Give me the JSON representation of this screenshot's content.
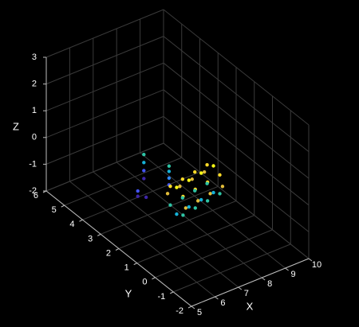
{
  "chart_data": {
    "type": "scatter3d",
    "xlabel": "X",
    "ylabel": "Y",
    "zlabel": "Z",
    "xlim": [
      5,
      10
    ],
    "ylim": [
      -2,
      6
    ],
    "zlim": [
      -2,
      3
    ],
    "xticks": [
      5,
      6,
      7,
      8,
      9,
      10
    ],
    "yticks": [
      -2,
      -1,
      0,
      1,
      2,
      3,
      4,
      5,
      6
    ],
    "zticks": [
      -2,
      -1,
      0,
      1,
      2,
      3
    ],
    "grid": true,
    "colormap": [
      "#3e26a8",
      "#4355f4",
      "#2e87f7",
      "#16b1d6",
      "#2ec4a5",
      "#8fcb5c",
      "#e1bc3a",
      "#fdda27",
      "#f9fb15"
    ],
    "x": [
      8,
      8,
      8,
      8,
      8.3,
      8.3,
      8.3,
      8.3,
      7.2,
      7.2,
      7.4,
      7,
      7,
      7,
      7,
      7,
      7,
      7,
      7,
      7.6,
      7.6,
      7.6,
      7.6,
      7.6,
      7.6,
      7.6,
      7.6,
      8.2,
      8.2,
      8.2,
      8.2,
      8.2,
      8.2,
      8.2,
      8.2,
      8.8,
      8.8,
      8.8,
      8.8,
      8.8,
      8.8,
      8.8,
      8.8
    ],
    "y": [
      4.5,
      4.5,
      4.5,
      4.5,
      3.5,
      3.5,
      3.5,
      3.5,
      3.8,
      3.8,
      3.6,
      1.9,
      1.75,
      1.4,
      1.05,
      0.9,
      1.05,
      1.4,
      1.75,
      2.0,
      1.85,
      1.5,
      1.15,
      1.0,
      1.15,
      1.5,
      1.85,
      2.1,
      1.95,
      1.6,
      1.25,
      1.1,
      1.25,
      1.6,
      1.95,
      2.2,
      2.05,
      1.7,
      1.35,
      1.2,
      1.35,
      1.7,
      2.05
    ],
    "z": [
      -1.8,
      -1.5,
      -1.2,
      -0.9,
      -1.6,
      -1.35,
      -1.1,
      -0.9,
      -1.8,
      -1.6,
      -1.8,
      -0.6,
      -0.25,
      -0.1,
      -0.25,
      -0.6,
      -0.95,
      -1.1,
      -0.95,
      -0.6,
      -0.25,
      -0.1,
      -0.25,
      -0.6,
      -0.95,
      -1.1,
      -0.95,
      -0.6,
      -0.25,
      -0.1,
      -0.25,
      -0.6,
      -0.95,
      -1.1,
      -0.95,
      -0.6,
      -0.25,
      -0.1,
      -0.25,
      -0.6,
      -0.95,
      -1.1,
      -0.95
    ]
  }
}
